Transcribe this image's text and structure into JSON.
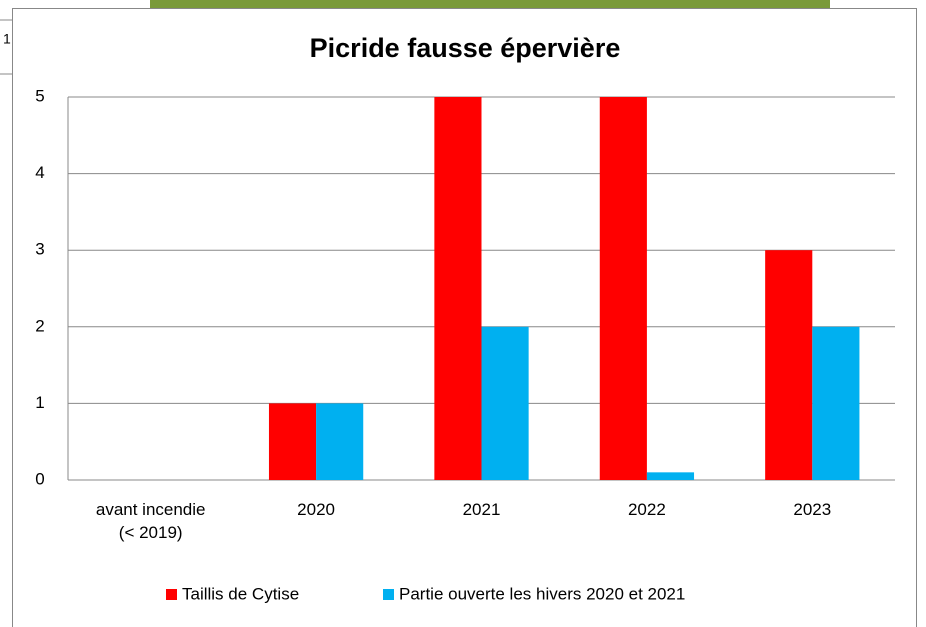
{
  "background": {
    "cell_text": "1"
  },
  "chart_data": {
    "type": "bar",
    "title": "Picride fausse épervière",
    "categories": [
      "avant incendie\n(< 2019)",
      "2020",
      "2021",
      "2022",
      "2023"
    ],
    "series": [
      {
        "name": "Taillis de Cytise",
        "color": "#ff0000",
        "values": [
          0,
          1,
          5,
          5,
          3
        ]
      },
      {
        "name": "Partie ouverte les hivers 2020 et 2021",
        "color": "#00b0f0",
        "values": [
          0,
          1,
          2,
          0.1,
          2
        ]
      }
    ],
    "ylim": [
      0,
      5
    ],
    "yticks": [
      0,
      1,
      2,
      3,
      4,
      5
    ],
    "grid": true,
    "legend": "bottom"
  }
}
